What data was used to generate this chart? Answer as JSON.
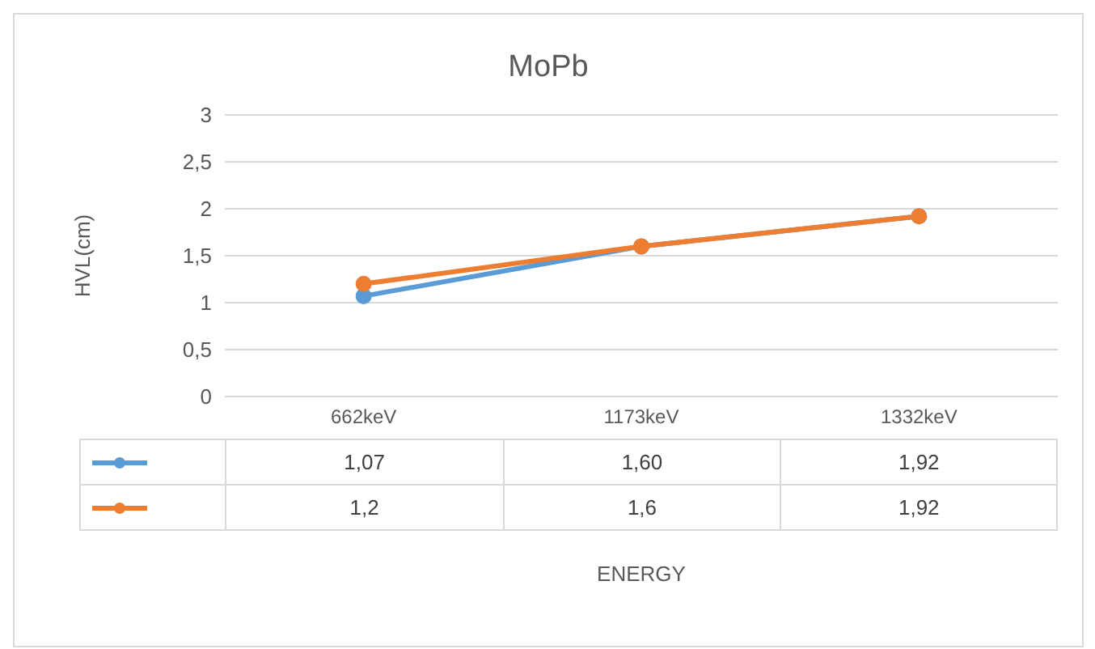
{
  "chart_data": {
    "type": "line",
    "title": "MoPb",
    "annotations": [
      "ENERGY"
    ],
    "ylabel": "HVL(cm)",
    "categories": [
      "662keV",
      "1173keV",
      "1332keV"
    ],
    "series": [
      {
        "color": "#5b9bd5",
        "values": [
          1.07,
          1.6,
          1.92
        ],
        "value_labels": [
          "1,07",
          "1,60",
          "1,92"
        ]
      },
      {
        "color": "#ed7d31",
        "values": [
          1.2,
          1.6,
          1.92
        ],
        "value_labels": [
          "1,2",
          "1,6",
          "1,92"
        ]
      }
    ],
    "ylim": [
      0,
      3
    ],
    "yticks": [
      0,
      {
        "value": 0.5,
        "label": "0,5"
      },
      1,
      {
        "value": 1.5,
        "label": "1,5"
      },
      2,
      {
        "value": 2.5,
        "label": "2,5"
      },
      3
    ],
    "grid": "y",
    "marker": "circle",
    "line_style": "solid"
  }
}
